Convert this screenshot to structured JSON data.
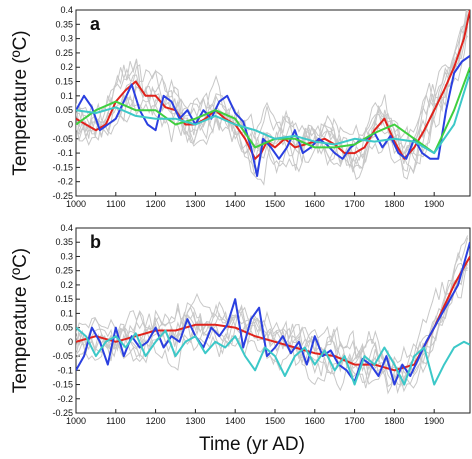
{
  "x_label": "Time (yr AD)",
  "chart_data": [
    {
      "type": "line",
      "panel_label": "a",
      "ylabel": "Temperature (ºC)",
      "xlim": [
        1000,
        1990
      ],
      "ylim": [
        -0.25,
        0.4
      ],
      "x_ticks": [
        "1000",
        "1100",
        "1200",
        "1300",
        "1400",
        "1500",
        "1600",
        "1700",
        "1800",
        "1900"
      ],
      "y_ticks": [
        "0.4",
        "0.35",
        "0.3",
        "0.25",
        "0.2",
        "0.15",
        "0.1",
        "0.05",
        "0",
        "-0.05",
        "-0.1",
        "-0.15",
        "-0.2",
        "-0.25"
      ],
      "grid": false,
      "colors": {
        "background_series": "#c8c8c8",
        "red": "#e0231c",
        "blue": "#2a3fe0",
        "green": "#3fcf3f",
        "cyan": "#3cc8c8"
      },
      "series": [
        {
          "color": "red",
          "x": [
            1000,
            1025,
            1050,
            1075,
            1100,
            1125,
            1150,
            1175,
            1200,
            1225,
            1250,
            1275,
            1300,
            1325,
            1350,
            1375,
            1400,
            1425,
            1450,
            1465,
            1480,
            1500,
            1525,
            1550,
            1575,
            1600,
            1625,
            1650,
            1675,
            1700,
            1725,
            1750,
            1775,
            1800,
            1825,
            1850,
            1875,
            1900,
            1925,
            1950,
            1975,
            1990
          ],
          "values": [
            0.02,
            0.0,
            -0.02,
            0.0,
            0.08,
            0.12,
            0.15,
            0.1,
            0.1,
            0.06,
            0.05,
            0.0,
            0.0,
            0.02,
            0.05,
            0.02,
            0.0,
            -0.05,
            -0.12,
            -0.1,
            -0.06,
            -0.08,
            -0.05,
            -0.08,
            -0.07,
            -0.06,
            -0.05,
            -0.07,
            -0.1,
            -0.1,
            -0.08,
            -0.02,
            0.02,
            -0.06,
            -0.12,
            -0.08,
            -0.02,
            0.05,
            0.12,
            0.2,
            0.3,
            0.4
          ]
        },
        {
          "color": "blue",
          "x": [
            1000,
            1020,
            1040,
            1060,
            1080,
            1100,
            1120,
            1140,
            1160,
            1180,
            1200,
            1220,
            1240,
            1260,
            1280,
            1300,
            1320,
            1340,
            1360,
            1380,
            1400,
            1420,
            1440,
            1455,
            1470,
            1490,
            1510,
            1530,
            1550,
            1570,
            1590,
            1610,
            1630,
            1650,
            1670,
            1690,
            1710,
            1730,
            1750,
            1770,
            1790,
            1810,
            1830,
            1850,
            1870,
            1890,
            1910,
            1930,
            1950,
            1970,
            1990
          ],
          "values": [
            0.05,
            0.1,
            0.06,
            -0.02,
            0.0,
            0.02,
            0.08,
            0.14,
            0.05,
            0.0,
            -0.02,
            0.1,
            0.08,
            0.02,
            0.05,
            0.0,
            0.05,
            0.02,
            0.08,
            0.1,
            0.04,
            0.01,
            -0.08,
            -0.18,
            -0.05,
            -0.08,
            -0.12,
            -0.08,
            -0.02,
            -0.1,
            -0.08,
            -0.05,
            -0.07,
            -0.1,
            -0.12,
            -0.08,
            -0.06,
            -0.05,
            -0.03,
            -0.08,
            -0.04,
            -0.1,
            -0.12,
            -0.05,
            -0.1,
            -0.12,
            -0.12,
            0.05,
            0.18,
            0.22,
            0.24
          ]
        },
        {
          "color": "green",
          "x": [
            1000,
            1050,
            1100,
            1150,
            1200,
            1250,
            1300,
            1350,
            1400,
            1450,
            1500,
            1550,
            1600,
            1650,
            1700,
            1750,
            1800,
            1850,
            1900,
            1950,
            1990
          ],
          "values": [
            0.0,
            0.05,
            0.08,
            0.05,
            0.05,
            0.0,
            0.02,
            0.05,
            0.02,
            -0.08,
            -0.05,
            -0.05,
            -0.08,
            -0.08,
            -0.07,
            -0.03,
            0.0,
            -0.05,
            -0.1,
            0.05,
            0.2
          ]
        },
        {
          "color": "cyan",
          "x": [
            1000,
            1050,
            1100,
            1150,
            1200,
            1250,
            1300,
            1350,
            1400,
            1450,
            1500,
            1550,
            1600,
            1650,
            1700,
            1750,
            1800,
            1850,
            1900,
            1950,
            1990
          ],
          "values": [
            0.05,
            0.04,
            0.06,
            0.03,
            0.02,
            0.02,
            0.0,
            0.03,
            0.0,
            -0.02,
            -0.05,
            -0.04,
            -0.06,
            -0.07,
            -0.05,
            -0.06,
            -0.05,
            -0.06,
            -0.1,
            0.0,
            0.18
          ]
        }
      ]
    },
    {
      "type": "line",
      "panel_label": "b",
      "ylabel": "Temperature (ºC)",
      "xlim": [
        1000,
        1990
      ],
      "ylim": [
        -0.25,
        0.4
      ],
      "x_ticks": [
        "1000",
        "1100",
        "1200",
        "1300",
        "1400",
        "1500",
        "1600",
        "1700",
        "1800",
        "1900"
      ],
      "y_ticks": [
        "0.4",
        "0.35",
        "0.3",
        "0.25",
        "0.2",
        "0.15",
        "0.1",
        "0.05",
        "0",
        "-0.05",
        "-0.1",
        "-0.15",
        "-0.2",
        "-0.25"
      ],
      "grid": false,
      "colors": {
        "background_series": "#c8c8c8",
        "red": "#e0231c",
        "blue": "#2a3fe0",
        "cyan": "#3cc8c8"
      },
      "series": [
        {
          "color": "red",
          "x": [
            1000,
            1050,
            1100,
            1150,
            1200,
            1250,
            1300,
            1350,
            1400,
            1450,
            1500,
            1550,
            1600,
            1650,
            1700,
            1750,
            1800,
            1850,
            1900,
            1950,
            1990
          ],
          "values": [
            0.0,
            0.02,
            0.0,
            0.02,
            0.04,
            0.04,
            0.06,
            0.06,
            0.05,
            0.02,
            0.0,
            -0.02,
            -0.04,
            -0.05,
            -0.08,
            -0.08,
            -0.1,
            -0.08,
            0.05,
            0.2,
            0.3
          ]
        },
        {
          "color": "blue",
          "x": [
            1000,
            1020,
            1040,
            1060,
            1080,
            1100,
            1120,
            1140,
            1160,
            1180,
            1200,
            1220,
            1240,
            1260,
            1280,
            1300,
            1320,
            1340,
            1360,
            1380,
            1400,
            1420,
            1440,
            1460,
            1480,
            1500,
            1520,
            1540,
            1560,
            1580,
            1600,
            1620,
            1640,
            1660,
            1680,
            1700,
            1720,
            1740,
            1760,
            1780,
            1800,
            1820,
            1840,
            1860,
            1880,
            1900,
            1920,
            1940,
            1960,
            1980,
            1990
          ],
          "values": [
            -0.1,
            -0.05,
            0.05,
            0.0,
            -0.08,
            0.05,
            -0.05,
            0.02,
            -0.02,
            0.0,
            0.05,
            -0.02,
            0.02,
            0.0,
            0.08,
            0.02,
            -0.02,
            0.05,
            0.02,
            0.06,
            0.15,
            -0.02,
            0.08,
            0.12,
            -0.05,
            -0.02,
            0.02,
            -0.04,
            0.0,
            -0.08,
            0.02,
            -0.05,
            -0.03,
            -0.08,
            -0.1,
            -0.14,
            -0.06,
            -0.08,
            -0.12,
            -0.05,
            -0.15,
            -0.08,
            -0.12,
            -0.06,
            0.0,
            0.05,
            0.1,
            0.15,
            0.2,
            0.3,
            0.35
          ]
        },
        {
          "color": "cyan",
          "x": [
            1000,
            1025,
            1050,
            1075,
            1100,
            1125,
            1150,
            1175,
            1200,
            1225,
            1250,
            1275,
            1300,
            1325,
            1350,
            1375,
            1400,
            1425,
            1450,
            1475,
            1500,
            1525,
            1550,
            1575,
            1600,
            1625,
            1650,
            1675,
            1700,
            1725,
            1750,
            1775,
            1800,
            1825,
            1850,
            1875,
            1900,
            1925,
            1950,
            1975,
            1990
          ],
          "values": [
            0.05,
            0.02,
            -0.05,
            0.0,
            0.02,
            -0.02,
            0.03,
            -0.05,
            0.0,
            0.04,
            -0.05,
            0.0,
            0.02,
            -0.04,
            0.0,
            -0.02,
            0.02,
            -0.05,
            -0.1,
            -0.02,
            -0.05,
            -0.12,
            -0.05,
            -0.02,
            -0.08,
            -0.03,
            -0.1,
            -0.05,
            -0.15,
            -0.05,
            -0.08,
            -0.02,
            -0.08,
            -0.15,
            -0.05,
            -0.02,
            -0.15,
            -0.08,
            -0.02,
            0.0,
            -0.01
          ]
        }
      ]
    }
  ]
}
